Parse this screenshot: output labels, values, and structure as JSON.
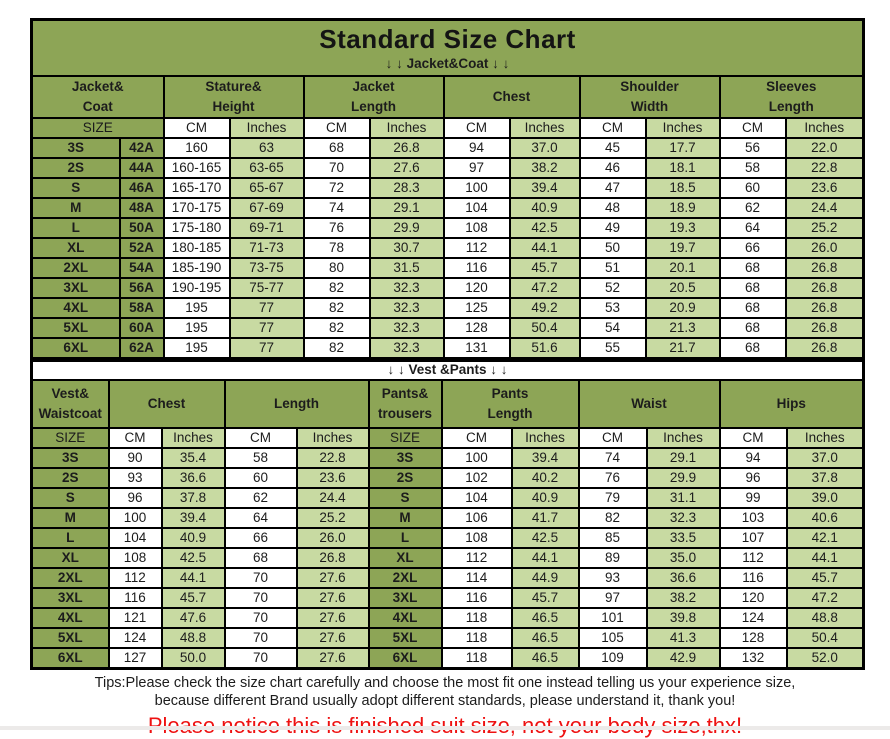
{
  "title": "Standard Size Chart",
  "labels": {
    "size": "SIZE",
    "cm": "CM",
    "inches": "Inches"
  },
  "colors": {
    "header_green": "#8DA556",
    "inches_light_green": "#C8DAA2",
    "notice_red": "#EE1111",
    "border_black": "#000000"
  },
  "jacket_table": {
    "subtitle": "↓ ↓  Jacket&Coat ↓ ↓",
    "groups": [
      "Jacket&\nCoat",
      "Stature&\nHeight",
      "Jacket\nLength",
      "Chest",
      "Shoulder\nWidth",
      "Sleeves\nLength"
    ],
    "rows": [
      {
        "size": "3S",
        "code": "42A",
        "values": [
          "160",
          "63",
          "68",
          "26.8",
          "94",
          "37.0",
          "45",
          "17.7",
          "56",
          "22.0"
        ]
      },
      {
        "size": "2S",
        "code": "44A",
        "values": [
          "160-165",
          "63-65",
          "70",
          "27.6",
          "97",
          "38.2",
          "46",
          "18.1",
          "58",
          "22.8"
        ]
      },
      {
        "size": "S",
        "code": "46A",
        "values": [
          "165-170",
          "65-67",
          "72",
          "28.3",
          "100",
          "39.4",
          "47",
          "18.5",
          "60",
          "23.6"
        ]
      },
      {
        "size": "M",
        "code": "48A",
        "values": [
          "170-175",
          "67-69",
          "74",
          "29.1",
          "104",
          "40.9",
          "48",
          "18.9",
          "62",
          "24.4"
        ]
      },
      {
        "size": "L",
        "code": "50A",
        "values": [
          "175-180",
          "69-71",
          "76",
          "29.9",
          "108",
          "42.5",
          "49",
          "19.3",
          "64",
          "25.2"
        ]
      },
      {
        "size": "XL",
        "code": "52A",
        "values": [
          "180-185",
          "71-73",
          "78",
          "30.7",
          "112",
          "44.1",
          "50",
          "19.7",
          "66",
          "26.0"
        ]
      },
      {
        "size": "2XL",
        "code": "54A",
        "values": [
          "185-190",
          "73-75",
          "80",
          "31.5",
          "116",
          "45.7",
          "51",
          "20.1",
          "68",
          "26.8"
        ]
      },
      {
        "size": "3XL",
        "code": "56A",
        "values": [
          "190-195",
          "75-77",
          "82",
          "32.3",
          "120",
          "47.2",
          "52",
          "20.5",
          "68",
          "26.8"
        ]
      },
      {
        "size": "4XL",
        "code": "58A",
        "values": [
          "195",
          "77",
          "82",
          "32.3",
          "125",
          "49.2",
          "53",
          "20.9",
          "68",
          "26.8"
        ]
      },
      {
        "size": "5XL",
        "code": "60A",
        "values": [
          "195",
          "77",
          "82",
          "32.3",
          "128",
          "50.4",
          "54",
          "21.3",
          "68",
          "26.8"
        ]
      },
      {
        "size": "6XL",
        "code": "62A",
        "values": [
          "195",
          "77",
          "82",
          "32.3",
          "131",
          "51.6",
          "55",
          "21.7",
          "68",
          "26.8"
        ]
      }
    ]
  },
  "vest_table": {
    "divider": "↓ ↓  Vest &Pants ↓ ↓",
    "groups": [
      "Vest&\nWaistcoat",
      "Chest",
      "Length",
      "Pants&\ntrousers",
      "Pants\nLength",
      "Waist",
      "Hips"
    ],
    "rows": [
      {
        "size": "3S",
        "vest": [
          "90",
          "35.4",
          "58",
          "22.8"
        ],
        "pants_size": "3S",
        "pants": [
          "100",
          "39.4",
          "74",
          "29.1",
          "94",
          "37.0"
        ]
      },
      {
        "size": "2S",
        "vest": [
          "93",
          "36.6",
          "60",
          "23.6"
        ],
        "pants_size": "2S",
        "pants": [
          "102",
          "40.2",
          "76",
          "29.9",
          "96",
          "37.8"
        ]
      },
      {
        "size": "S",
        "vest": [
          "96",
          "37.8",
          "62",
          "24.4"
        ],
        "pants_size": "S",
        "pants": [
          "104",
          "40.9",
          "79",
          "31.1",
          "99",
          "39.0"
        ]
      },
      {
        "size": "M",
        "vest": [
          "100",
          "39.4",
          "64",
          "25.2"
        ],
        "pants_size": "M",
        "pants": [
          "106",
          "41.7",
          "82",
          "32.3",
          "103",
          "40.6"
        ]
      },
      {
        "size": "L",
        "vest": [
          "104",
          "40.9",
          "66",
          "26.0"
        ],
        "pants_size": "L",
        "pants": [
          "108",
          "42.5",
          "85",
          "33.5",
          "107",
          "42.1"
        ]
      },
      {
        "size": "XL",
        "vest": [
          "108",
          "42.5",
          "68",
          "26.8"
        ],
        "pants_size": "XL",
        "pants": [
          "112",
          "44.1",
          "89",
          "35.0",
          "112",
          "44.1"
        ]
      },
      {
        "size": "2XL",
        "vest": [
          "112",
          "44.1",
          "70",
          "27.6"
        ],
        "pants_size": "2XL",
        "pants": [
          "114",
          "44.9",
          "93",
          "36.6",
          "116",
          "45.7"
        ]
      },
      {
        "size": "3XL",
        "vest": [
          "116",
          "45.7",
          "70",
          "27.6"
        ],
        "pants_size": "3XL",
        "pants": [
          "116",
          "45.7",
          "97",
          "38.2",
          "120",
          "47.2"
        ]
      },
      {
        "size": "4XL",
        "vest": [
          "121",
          "47.6",
          "70",
          "27.6"
        ],
        "pants_size": "4XL",
        "pants": [
          "118",
          "46.5",
          "101",
          "39.8",
          "124",
          "48.8"
        ]
      },
      {
        "size": "5XL",
        "vest": [
          "124",
          "48.8",
          "70",
          "27.6"
        ],
        "pants_size": "5XL",
        "pants": [
          "118",
          "46.5",
          "105",
          "41.3",
          "128",
          "50.4"
        ]
      },
      {
        "size": "6XL",
        "vest": [
          "127",
          "50.0",
          "70",
          "27.6"
        ],
        "pants_size": "6XL",
        "pants": [
          "118",
          "46.5",
          "109",
          "42.9",
          "132",
          "52.0"
        ]
      }
    ]
  },
  "tips": [
    "Tips:Please check the size chart carefully and choose the most fit one instead telling us your experience size,",
    "because different Brand usually adopt different standards, please understand it, thank you!"
  ],
  "notice": "Please notice this is finished suit size, not your body size,thx!"
}
